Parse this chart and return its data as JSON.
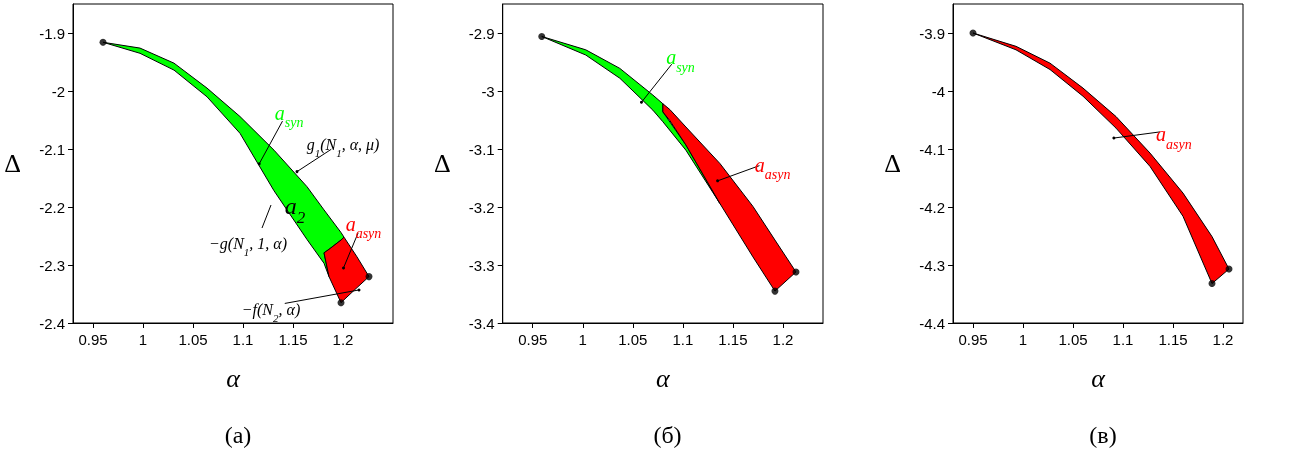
{
  "chart_data": [
    {
      "type": "area",
      "title": "(а)",
      "xlabel": "α",
      "ylabel": "Δ",
      "xlim": [
        0.93,
        1.25
      ],
      "ylim": [
        -2.4,
        -1.85
      ],
      "xticks": [
        0.95,
        1,
        1.05,
        1.1,
        1.15,
        1.2
      ],
      "yticks": [
        -1.9,
        -2,
        -2.1,
        -2.2,
        -2.3,
        -2.4
      ],
      "grid": false,
      "series": [
        {
          "name": "a$_{syn}$",
          "color": "#00ff00",
          "x": [
            0.96,
            0.997,
            1.031,
            1.064,
            1.097,
            1.131,
            1.164,
            1.181,
            1.198,
            1.201,
            1.198,
            1.186,
            1.181,
            1.186,
            1.181,
            1.164,
            1.131,
            1.097,
            1.064,
            1.031,
            0.997
          ],
          "values": [
            -1.916,
            -1.926,
            -1.952,
            -1.995,
            -2.044,
            -2.102,
            -2.165,
            -2.205,
            -2.244,
            -2.252,
            -2.257,
            -2.273,
            -2.279,
            -2.32,
            -2.297,
            -2.256,
            -2.172,
            -2.073,
            -2.01,
            -1.964,
            -1.935
          ]
        },
        {
          "name": "a$_{asyn}$",
          "color": "#ff0000",
          "x": [
            1.181,
            1.186,
            1.198,
            1.201,
            1.214,
            1.226,
            1.214,
            1.201,
            1.198,
            1.186
          ],
          "values": [
            -2.279,
            -2.273,
            -2.257,
            -2.252,
            -2.286,
            -2.32,
            -2.339,
            -2.36,
            -2.365,
            -2.32
          ]
        },
        {
          "type": "scatter",
          "marker": "circle",
          "color": "#000000",
          "x": [
            0.96,
            1.198,
            1.226
          ],
          "values": [
            -1.916,
            -2.365,
            -2.32
          ]
        }
      ],
      "annotations": [
        {
          "text": "g$_{1}$(N$_{1}$, α, μ)",
          "x": 1.154,
          "y": -2.139
        },
        "−g(N$_{1}$, 1, α)",
        {
          "text": "−f(N$_{2}$, α)",
          "x": 1.216,
          "y": -2.343
        },
        "a$_{2}$"
      ]
    },
    {
      "type": "area",
      "title": "(б)",
      "xlabel": "α",
      "ylabel": "Δ",
      "xlim": [
        0.92,
        1.24
      ],
      "ylim": [
        -3.4,
        -2.85
      ],
      "xticks": [
        0.95,
        1,
        1.05,
        1.1,
        1.15,
        1.2
      ],
      "yticks": [
        -2.9,
        -3,
        -3.1,
        -3.2,
        -3.3,
        -3.4
      ],
      "grid": false,
      "series": [
        {
          "name": "a$_{syn}$",
          "color": "#00ff00",
          "x": [
            0.959,
            1.003,
            1.037,
            1.07,
            1.08,
            1.08,
            1.103,
            1.137,
            1.103,
            1.08,
            1.07,
            1.037,
            1.003
          ],
          "values": [
            -2.906,
            -2.929,
            -2.961,
            -3.007,
            -3.022,
            -3.036,
            -3.093,
            -3.194,
            -3.102,
            -3.053,
            -3.033,
            -2.978,
            -2.938
          ]
        },
        {
          "name": "a$_{asyn}$",
          "color": "#ff0000",
          "x": [
            1.08,
            1.087,
            1.103,
            1.137,
            1.17,
            1.192,
            1.213,
            1.192,
            1.17,
            1.137,
            1.103,
            1.087,
            1.08
          ],
          "values": [
            -3.022,
            -3.032,
            -3.062,
            -3.125,
            -3.199,
            -3.257,
            -3.312,
            -3.345,
            -3.286,
            -3.194,
            -3.093,
            -3.051,
            -3.036
          ]
        },
        {
          "type": "scatter",
          "marker": "circle",
          "color": "#000000",
          "x": [
            0.959,
            1.192,
            1.213
          ],
          "values": [
            -2.906,
            -3.345,
            -3.312
          ]
        }
      ]
    },
    {
      "type": "area",
      "title": "(в)",
      "xlabel": "α",
      "ylabel": "Δ",
      "xlim": [
        0.93,
        1.22
      ],
      "ylim": [
        -4.4,
        -3.85
      ],
      "xticks": [
        0.95,
        1,
        1.05,
        1.1,
        1.15,
        1.2
      ],
      "yticks": [
        -3.9,
        -4,
        -4.1,
        -4.2,
        -4.3,
        -4.4
      ],
      "grid": false,
      "series": [
        {
          "name": "a$_{asyn}$",
          "color": "#ff0000",
          "x": [
            0.95,
            0.993,
            1.027,
            1.06,
            1.093,
            1.127,
            1.16,
            1.189,
            1.206,
            1.189,
            1.16,
            1.127,
            1.093,
            1.06,
            1.027,
            0.993
          ],
          "values": [
            -3.9,
            -3.923,
            -3.952,
            -3.995,
            -4.044,
            -4.107,
            -4.176,
            -4.251,
            -4.307,
            -4.332,
            -4.216,
            -4.13,
            -4.064,
            -4.009,
            -3.963,
            -3.929
          ]
        },
        {
          "type": "scatter",
          "marker": "circle",
          "color": "#000000",
          "x": [
            0.95,
            1.189,
            1.206
          ],
          "values": [
            -3.9,
            -4.332,
            -4.307
          ]
        }
      ]
    }
  ]
}
